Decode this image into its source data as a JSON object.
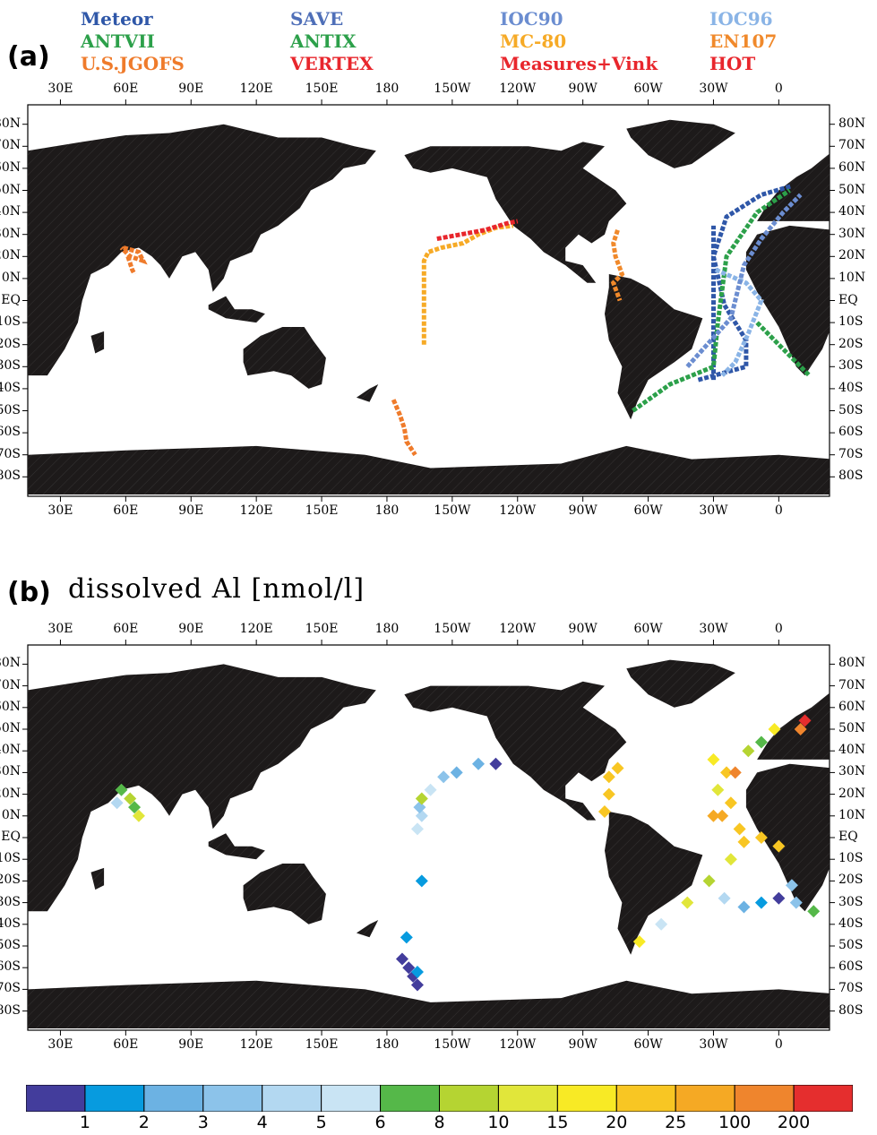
{
  "panel_a": {
    "label": "(a)",
    "legend": [
      {
        "text": "Meteor",
        "color": "#2f57a8"
      },
      {
        "text": "ANTVII",
        "color": "#2ca04a"
      },
      {
        "text": "U.S.JGOFS",
        "color": "#ef7b2b"
      },
      {
        "text": "SAVE",
        "color": "#4f6fb8"
      },
      {
        "text": "ANTIX",
        "color": "#2ca04a"
      },
      {
        "text": "VERTEX",
        "color": "#e8262c"
      },
      {
        "text": "IOC90",
        "color": "#6b8dd0"
      },
      {
        "text": "MC-80",
        "color": "#f6aa26"
      },
      {
        "text": "Measures+Vink",
        "color": "#e8262c"
      },
      {
        "text": "IOC96",
        "color": "#8ab4e6"
      },
      {
        "text": "EN107",
        "color": "#f0892b"
      },
      {
        "text": "HOT",
        "color": "#e8262c"
      }
    ]
  },
  "panel_b": {
    "label": "(b)",
    "title": "dissolved Al [nmol/l]"
  },
  "lon_ticks": [
    "30E",
    "60E",
    "90E",
    "120E",
    "150E",
    "180",
    "150W",
    "120W",
    "90W",
    "60W",
    "30W",
    "0"
  ],
  "lat_ticks": [
    "80N",
    "70N",
    "60N",
    "50N",
    "40N",
    "30N",
    "20N",
    "10N",
    "EQ",
    "10S",
    "20S",
    "30S",
    "40S",
    "50S",
    "60S",
    "70S",
    "80S"
  ],
  "colorbar": {
    "colors": [
      "#433d9c",
      "#079bdf",
      "#6cb2e3",
      "#8cc3ea",
      "#b3d8f1",
      "#c9e4f4",
      "#55b849",
      "#b5d432",
      "#e1e63a",
      "#f8ea25",
      "#f8c623",
      "#f5a924",
      "#ef852d",
      "#e52e2e"
    ],
    "labels": [
      "1",
      "2",
      "3",
      "4",
      "5",
      "6",
      "8",
      "10",
      "15",
      "20",
      "25",
      "100",
      "200"
    ]
  }
}
